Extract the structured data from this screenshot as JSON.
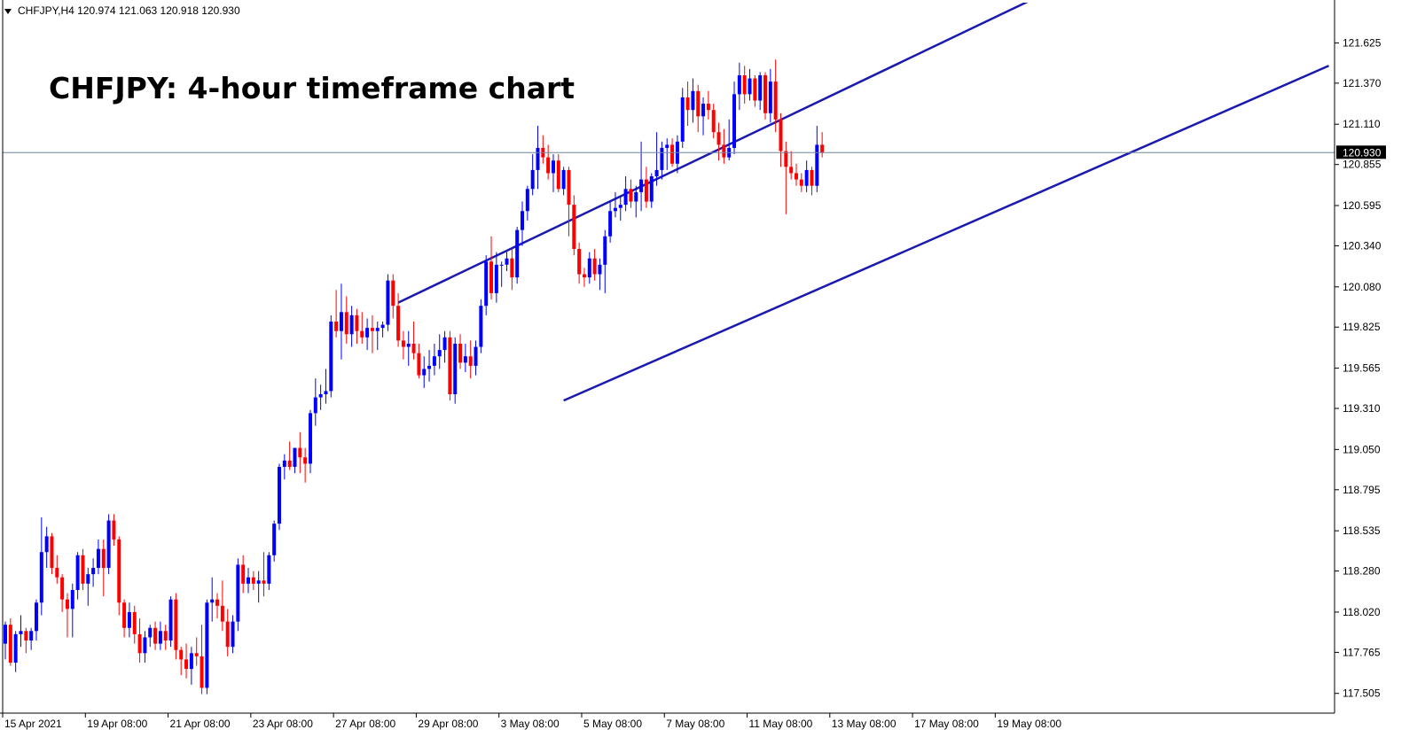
{
  "header": {
    "symbol_info": "CHFJPY,H4  120.974 121.063 120.918 120.930",
    "dropdown_icon": "triangle-down-icon"
  },
  "colors": {
    "bull": "#0000ff",
    "bear": "#ff0000",
    "trendline": "#1a1ab0",
    "current_price_line": "#6f86a0",
    "price_tag_bg": "#000000",
    "axis": "#000000"
  },
  "chart_data": {
    "type": "candlestick",
    "title": "CHFJPY: 4-hour timeframe chart",
    "ylim": [
      117.38,
      121.88
    ],
    "yticks": [
      "121.625",
      "121.370",
      "121.110",
      "120.855",
      "120.595",
      "120.340",
      "120.080",
      "119.825",
      "119.565",
      "119.310",
      "119.050",
      "118.795",
      "118.535",
      "118.280",
      "118.020",
      "117.765",
      "117.505"
    ],
    "xticks": [
      "15 Apr 2021",
      "19 Apr 08:00",
      "21 Apr 08:00",
      "23 Apr 08:00",
      "27 Apr 08:00",
      "29 Apr 08:00",
      "3 May 08:00",
      "5 May 08:00",
      "7 May 08:00",
      "11 May 08:00",
      "13 May 08:00",
      "17 May 08:00",
      "19 May 08:00"
    ],
    "xtick_index": [
      0,
      16,
      32,
      48,
      64,
      80,
      96,
      112,
      128,
      144,
      160,
      176,
      192
    ],
    "current_price": 120.93,
    "current_price_label": "120.930",
    "trendlines": [
      {
        "name": "upper",
        "from": [
          76,
          119.98
        ],
        "to": [
          198,
          121.89
        ]
      },
      {
        "name": "lower",
        "from": [
          108,
          119.36
        ],
        "to": [
          256,
          121.48
        ]
      }
    ],
    "candles": [
      [
        117.82,
        117.96,
        117.72,
        117.94
      ],
      [
        117.94,
        117.98,
        117.68,
        117.7
      ],
      [
        117.7,
        117.9,
        117.64,
        117.88
      ],
      [
        117.88,
        118.0,
        117.8,
        117.9
      ],
      [
        117.9,
        117.92,
        117.76,
        117.84
      ],
      [
        117.84,
        117.92,
        117.78,
        117.9
      ],
      [
        117.9,
        118.1,
        117.84,
        118.08
      ],
      [
        118.08,
        118.62,
        118.0,
        118.4
      ],
      [
        118.4,
        118.56,
        118.3,
        118.5
      ],
      [
        118.5,
        118.52,
        118.26,
        118.3
      ],
      [
        118.3,
        118.38,
        118.2,
        118.24
      ],
      [
        118.24,
        118.26,
        118.02,
        118.1
      ],
      [
        118.1,
        118.14,
        117.86,
        118.04
      ],
      [
        118.04,
        118.2,
        117.86,
        118.16
      ],
      [
        118.16,
        118.4,
        118.1,
        118.38
      ],
      [
        118.38,
        118.42,
        118.16,
        118.2
      ],
      [
        118.2,
        118.3,
        118.06,
        118.26
      ],
      [
        118.26,
        118.36,
        118.18,
        118.3
      ],
      [
        118.3,
        118.48,
        118.26,
        118.42
      ],
      [
        118.42,
        118.48,
        118.12,
        118.3
      ],
      [
        118.3,
        118.64,
        118.26,
        118.6
      ],
      [
        118.6,
        118.64,
        118.44,
        118.48
      ],
      [
        118.48,
        118.5,
        118.0,
        118.08
      ],
      [
        118.08,
        118.1,
        117.86,
        117.92
      ],
      [
        117.92,
        118.08,
        117.86,
        118.02
      ],
      [
        118.02,
        118.06,
        117.82,
        117.88
      ],
      [
        117.88,
        117.98,
        117.7,
        117.76
      ],
      [
        117.76,
        117.9,
        117.7,
        117.86
      ],
      [
        117.86,
        117.94,
        117.8,
        117.92
      ],
      [
        117.92,
        117.96,
        117.78,
        117.82
      ],
      [
        117.82,
        117.96,
        117.78,
        117.9
      ],
      [
        117.9,
        117.94,
        117.78,
        117.84
      ],
      [
        117.84,
        118.12,
        117.8,
        118.1
      ],
      [
        118.1,
        118.14,
        117.72,
        117.78
      ],
      [
        117.78,
        117.8,
        117.62,
        117.72
      ],
      [
        117.72,
        117.82,
        117.6,
        117.66
      ],
      [
        117.66,
        117.8,
        117.56,
        117.76
      ],
      [
        117.76,
        117.86,
        117.68,
        117.74
      ],
      [
        117.74,
        117.94,
        117.5,
        117.54
      ],
      [
        117.54,
        118.1,
        117.5,
        118.08
      ],
      [
        118.08,
        118.24,
        117.96,
        118.1
      ],
      [
        118.1,
        118.14,
        117.98,
        118.06
      ],
      [
        118.06,
        118.22,
        117.9,
        117.96
      ],
      [
        117.96,
        118.04,
        117.74,
        117.8
      ],
      [
        117.8,
        118.0,
        117.76,
        117.96
      ],
      [
        117.96,
        118.36,
        117.9,
        118.32
      ],
      [
        118.32,
        118.38,
        118.14,
        118.2
      ],
      [
        118.2,
        118.3,
        118.14,
        118.24
      ],
      [
        118.24,
        118.28,
        118.16,
        118.2
      ],
      [
        118.2,
        118.28,
        118.08,
        118.22
      ],
      [
        118.22,
        118.4,
        118.12,
        118.2
      ],
      [
        118.2,
        118.4,
        118.16,
        118.38
      ],
      [
        118.38,
        118.6,
        118.34,
        118.58
      ],
      [
        118.58,
        118.96,
        118.54,
        118.94
      ],
      [
        118.94,
        119.02,
        118.86,
        118.98
      ],
      [
        118.98,
        119.1,
        118.92,
        118.94
      ],
      [
        118.94,
        119.04,
        118.9,
        119.06
      ],
      [
        119.06,
        119.16,
        118.9,
        119.0
      ],
      [
        119.0,
        119.06,
        118.84,
        118.96
      ],
      [
        118.96,
        119.3,
        118.9,
        119.28
      ],
      [
        119.28,
        119.5,
        119.2,
        119.38
      ],
      [
        119.38,
        119.46,
        119.3,
        119.4
      ],
      [
        119.4,
        119.56,
        119.34,
        119.42
      ],
      [
        119.42,
        119.9,
        119.38,
        119.86
      ],
      [
        119.86,
        120.06,
        119.76,
        119.8
      ],
      [
        119.8,
        120.1,
        119.62,
        119.92
      ],
      [
        119.92,
        120.02,
        119.72,
        119.78
      ],
      [
        119.78,
        119.96,
        119.7,
        119.9
      ],
      [
        119.9,
        119.94,
        119.72,
        119.8
      ],
      [
        119.8,
        119.92,
        119.72,
        119.76
      ],
      [
        119.76,
        119.88,
        119.68,
        119.82
      ],
      [
        119.82,
        119.9,
        119.66,
        119.8
      ],
      [
        119.8,
        119.86,
        119.68,
        119.82
      ],
      [
        119.82,
        119.86,
        119.76,
        119.84
      ],
      [
        119.84,
        120.16,
        119.8,
        120.12
      ],
      [
        120.12,
        120.16,
        119.88,
        119.96
      ],
      [
        119.96,
        120.04,
        119.7,
        119.74
      ],
      [
        119.74,
        119.8,
        119.62,
        119.7
      ],
      [
        119.7,
        119.8,
        119.58,
        119.72
      ],
      [
        119.72,
        119.86,
        119.62,
        119.66
      ],
      [
        119.66,
        119.72,
        119.5,
        119.52
      ],
      [
        119.52,
        119.64,
        119.44,
        119.56
      ],
      [
        119.56,
        119.68,
        119.48,
        119.58
      ],
      [
        119.58,
        119.72,
        119.52,
        119.64
      ],
      [
        119.64,
        119.78,
        119.56,
        119.68
      ],
      [
        119.68,
        119.8,
        119.6,
        119.76
      ],
      [
        119.76,
        119.8,
        119.36,
        119.4
      ],
      [
        119.4,
        119.76,
        119.34,
        119.72
      ],
      [
        119.72,
        119.78,
        119.56,
        119.6
      ],
      [
        119.6,
        119.72,
        119.54,
        119.64
      ],
      [
        119.64,
        119.74,
        119.5,
        119.58
      ],
      [
        119.58,
        119.74,
        119.52,
        119.7
      ],
      [
        119.7,
        120.0,
        119.66,
        119.96
      ],
      [
        119.96,
        120.28,
        119.9,
        120.24
      ],
      [
        120.24,
        120.4,
        120.0,
        120.04
      ],
      [
        120.04,
        120.3,
        119.98,
        120.22
      ],
      [
        120.22,
        120.24,
        120.08,
        120.22
      ],
      [
        120.22,
        120.3,
        120.18,
        120.26
      ],
      [
        120.26,
        120.32,
        120.06,
        120.14
      ],
      [
        120.14,
        120.46,
        120.1,
        120.44
      ],
      [
        120.44,
        120.62,
        120.34,
        120.56
      ],
      [
        120.56,
        120.72,
        120.5,
        120.7
      ],
      [
        120.7,
        120.92,
        120.66,
        120.82
      ],
      [
        120.82,
        121.1,
        120.7,
        120.96
      ],
      [
        120.96,
        121.04,
        120.86,
        120.9
      ],
      [
        120.9,
        120.98,
        120.76,
        120.8
      ],
      [
        120.8,
        120.92,
        120.68,
        120.88
      ],
      [
        120.88,
        120.92,
        120.68,
        120.7
      ],
      [
        120.7,
        120.84,
        120.66,
        120.82
      ],
      [
        120.82,
        120.84,
        120.4,
        120.6
      ],
      [
        120.6,
        120.66,
        120.28,
        120.32
      ],
      [
        120.32,
        120.36,
        120.1,
        120.16
      ],
      [
        120.16,
        120.2,
        120.08,
        120.14
      ],
      [
        120.14,
        120.3,
        120.1,
        120.26
      ],
      [
        120.26,
        120.32,
        120.12,
        120.16
      ],
      [
        120.16,
        120.26,
        120.06,
        120.22
      ],
      [
        120.22,
        120.44,
        120.04,
        120.4
      ],
      [
        120.4,
        120.62,
        120.36,
        120.56
      ],
      [
        120.56,
        120.68,
        120.52,
        120.58
      ],
      [
        120.58,
        120.66,
        120.5,
        120.6
      ],
      [
        120.6,
        120.78,
        120.56,
        120.7
      ],
      [
        120.7,
        120.76,
        120.58,
        120.62
      ],
      [
        120.62,
        120.72,
        120.52,
        120.68
      ],
      [
        120.68,
        121.0,
        120.56,
        120.76
      ],
      [
        120.76,
        120.84,
        120.58,
        120.62
      ],
      [
        120.62,
        120.8,
        120.58,
        120.78
      ],
      [
        120.78,
        121.06,
        120.72,
        120.82
      ],
      [
        120.82,
        121.0,
        120.76,
        120.96
      ],
      [
        120.96,
        121.02,
        120.82,
        120.98
      ],
      [
        120.98,
        121.02,
        120.84,
        120.86
      ],
      [
        120.86,
        121.04,
        120.8,
        121.0
      ],
      [
        121.0,
        121.34,
        120.96,
        121.28
      ],
      [
        121.28,
        121.38,
        121.1,
        121.2
      ],
      [
        121.2,
        121.4,
        121.12,
        121.32
      ],
      [
        121.32,
        121.36,
        121.06,
        121.16
      ],
      [
        121.16,
        121.28,
        121.04,
        121.24
      ],
      [
        121.24,
        121.32,
        121.14,
        121.2
      ],
      [
        121.2,
        121.24,
        121.02,
        121.06
      ],
      [
        121.06,
        121.12,
        120.88,
        120.98
      ],
      [
        120.98,
        121.08,
        120.86,
        120.9
      ],
      [
        120.9,
        121.14,
        120.88,
        120.96
      ],
      [
        120.96,
        121.38,
        120.92,
        121.3
      ],
      [
        121.3,
        121.5,
        121.2,
        121.42
      ],
      [
        121.42,
        121.48,
        121.24,
        121.3
      ],
      [
        121.3,
        121.46,
        121.26,
        121.4
      ],
      [
        121.4,
        121.42,
        121.22,
        121.26
      ],
      [
        121.26,
        121.44,
        121.2,
        121.42
      ],
      [
        121.42,
        121.44,
        121.14,
        121.18
      ],
      [
        121.18,
        121.46,
        121.12,
        121.38
      ],
      [
        121.38,
        121.52,
        121.06,
        121.14
      ],
      [
        121.14,
        121.18,
        120.84,
        120.94
      ],
      [
        120.94,
        121.0,
        120.54,
        120.84
      ],
      [
        120.84,
        120.94,
        120.76,
        120.8
      ],
      [
        120.8,
        120.86,
        120.72,
        120.76
      ],
      [
        120.76,
        120.8,
        120.68,
        120.72
      ],
      [
        120.72,
        120.88,
        120.68,
        120.82
      ],
      [
        120.82,
        120.84,
        120.66,
        120.72
      ],
      [
        120.72,
        121.1,
        120.68,
        120.98
      ],
      [
        120.98,
        121.06,
        120.9,
        120.93
      ]
    ]
  }
}
